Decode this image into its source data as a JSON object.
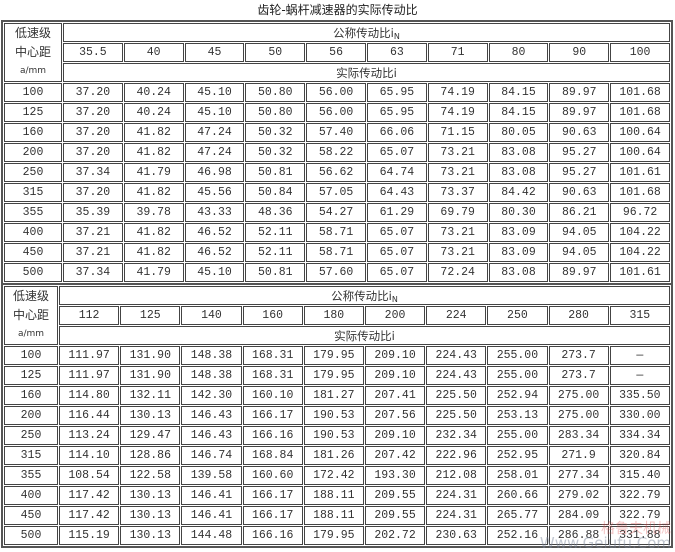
{
  "title": "齿轮-蜗杆减速器的实际传动比",
  "tables": [
    {
      "corner": [
        "低速级",
        "中心距",
        "a/mm"
      ],
      "nominal_label": "公称传动比i",
      "nominal_sub": "N",
      "actual_label": "实际传动比i",
      "nominal": [
        "35.5",
        "40",
        "45",
        "50",
        "56",
        "63",
        "71",
        "80",
        "90",
        "100"
      ],
      "rows": [
        {
          "a": "100",
          "v": [
            "37.20",
            "40.24",
            "45.10",
            "50.80",
            "56.00",
            "65.95",
            "74.19",
            "84.15",
            "89.97",
            "101.68"
          ]
        },
        {
          "a": "125",
          "v": [
            "37.20",
            "40.24",
            "45.10",
            "50.80",
            "56.00",
            "65.95",
            "74.19",
            "84.15",
            "89.97",
            "101.68"
          ]
        },
        {
          "a": "160",
          "v": [
            "37.20",
            "41.82",
            "47.24",
            "50.32",
            "57.40",
            "66.06",
            "71.15",
            "80.05",
            "90.63",
            "100.64"
          ]
        },
        {
          "a": "200",
          "v": [
            "37.20",
            "41.82",
            "47.24",
            "50.32",
            "58.22",
            "65.07",
            "73.21",
            "83.08",
            "95.27",
            "100.64"
          ]
        },
        {
          "a": "250",
          "v": [
            "37.34",
            "41.79",
            "46.98",
            "50.81",
            "56.62",
            "64.74",
            "73.21",
            "83.08",
            "95.27",
            "101.61"
          ]
        },
        {
          "a": "315",
          "v": [
            "37.20",
            "41.82",
            "45.56",
            "50.84",
            "57.05",
            "64.43",
            "73.37",
            "84.42",
            "90.63",
            "101.68"
          ]
        },
        {
          "a": "355",
          "v": [
            "35.39",
            "39.78",
            "43.33",
            "48.36",
            "54.27",
            "61.29",
            "69.79",
            "80.30",
            "86.21",
            "96.72"
          ]
        },
        {
          "a": "400",
          "v": [
            "37.21",
            "41.82",
            "46.52",
            "52.11",
            "58.71",
            "65.07",
            "73.21",
            "83.09",
            "94.05",
            "104.22"
          ]
        },
        {
          "a": "450",
          "v": [
            "37.21",
            "41.82",
            "46.52",
            "52.11",
            "58.71",
            "65.07",
            "73.21",
            "83.09",
            "94.05",
            "104.22"
          ]
        },
        {
          "a": "500",
          "v": [
            "37.34",
            "41.79",
            "45.10",
            "50.81",
            "57.60",
            "65.07",
            "72.24",
            "83.08",
            "89.97",
            "101.61"
          ]
        }
      ]
    },
    {
      "corner": [
        "低速级",
        "中心距",
        "a/mm"
      ],
      "nominal_label": "公称传动比i",
      "nominal_sub": "N",
      "actual_label": "实际传动比i",
      "nominal": [
        "112",
        "125",
        "140",
        "160",
        "180",
        "200",
        "224",
        "250",
        "280",
        "315"
      ],
      "rows": [
        {
          "a": "100",
          "v": [
            "111.97",
            "131.90",
            "148.38",
            "168.31",
            "179.95",
            "209.10",
            "224.43",
            "255.00",
            "273.7",
            "—"
          ]
        },
        {
          "a": "125",
          "v": [
            "111.97",
            "131.90",
            "148.38",
            "168.31",
            "179.95",
            "209.10",
            "224.43",
            "255.00",
            "273.7",
            "—"
          ]
        },
        {
          "a": "160",
          "v": [
            "114.80",
            "132.11",
            "142.30",
            "160.10",
            "181.27",
            "207.41",
            "225.50",
            "252.94",
            "275.00",
            "335.50"
          ]
        },
        {
          "a": "200",
          "v": [
            "116.44",
            "130.13",
            "146.43",
            "166.17",
            "190.53",
            "207.56",
            "225.50",
            "253.13",
            "275.00",
            "330.00"
          ]
        },
        {
          "a": "250",
          "v": [
            "113.24",
            "129.47",
            "146.43",
            "166.16",
            "190.53",
            "209.10",
            "232.34",
            "255.00",
            "283.34",
            "334.34"
          ]
        },
        {
          "a": "315",
          "v": [
            "114.10",
            "128.86",
            "146.74",
            "168.84",
            "181.26",
            "207.42",
            "222.96",
            "252.95",
            "271.9",
            "320.84"
          ]
        },
        {
          "a": "355",
          "v": [
            "108.54",
            "122.58",
            "139.58",
            "160.60",
            "172.42",
            "193.30",
            "212.08",
            "258.01",
            "277.34",
            "315.40"
          ]
        },
        {
          "a": "400",
          "v": [
            "117.42",
            "130.13",
            "146.41",
            "166.17",
            "188.11",
            "209.55",
            "224.31",
            "260.66",
            "279.02",
            "322.79"
          ]
        },
        {
          "a": "450",
          "v": [
            "117.42",
            "130.13",
            "146.41",
            "166.17",
            "188.11",
            "209.55",
            "224.31",
            "265.77",
            "284.09",
            "322.79"
          ]
        },
        {
          "a": "500",
          "v": [
            "115.19",
            "130.13",
            "144.48",
            "166.16",
            "179.95",
            "202.72",
            "230.63",
            "252.16",
            "286.88",
            "331.88"
          ]
        }
      ]
    }
  ],
  "watermark": {
    "cn": "格鲁夫机械",
    "url": "Www.Geiufu.Com"
  }
}
